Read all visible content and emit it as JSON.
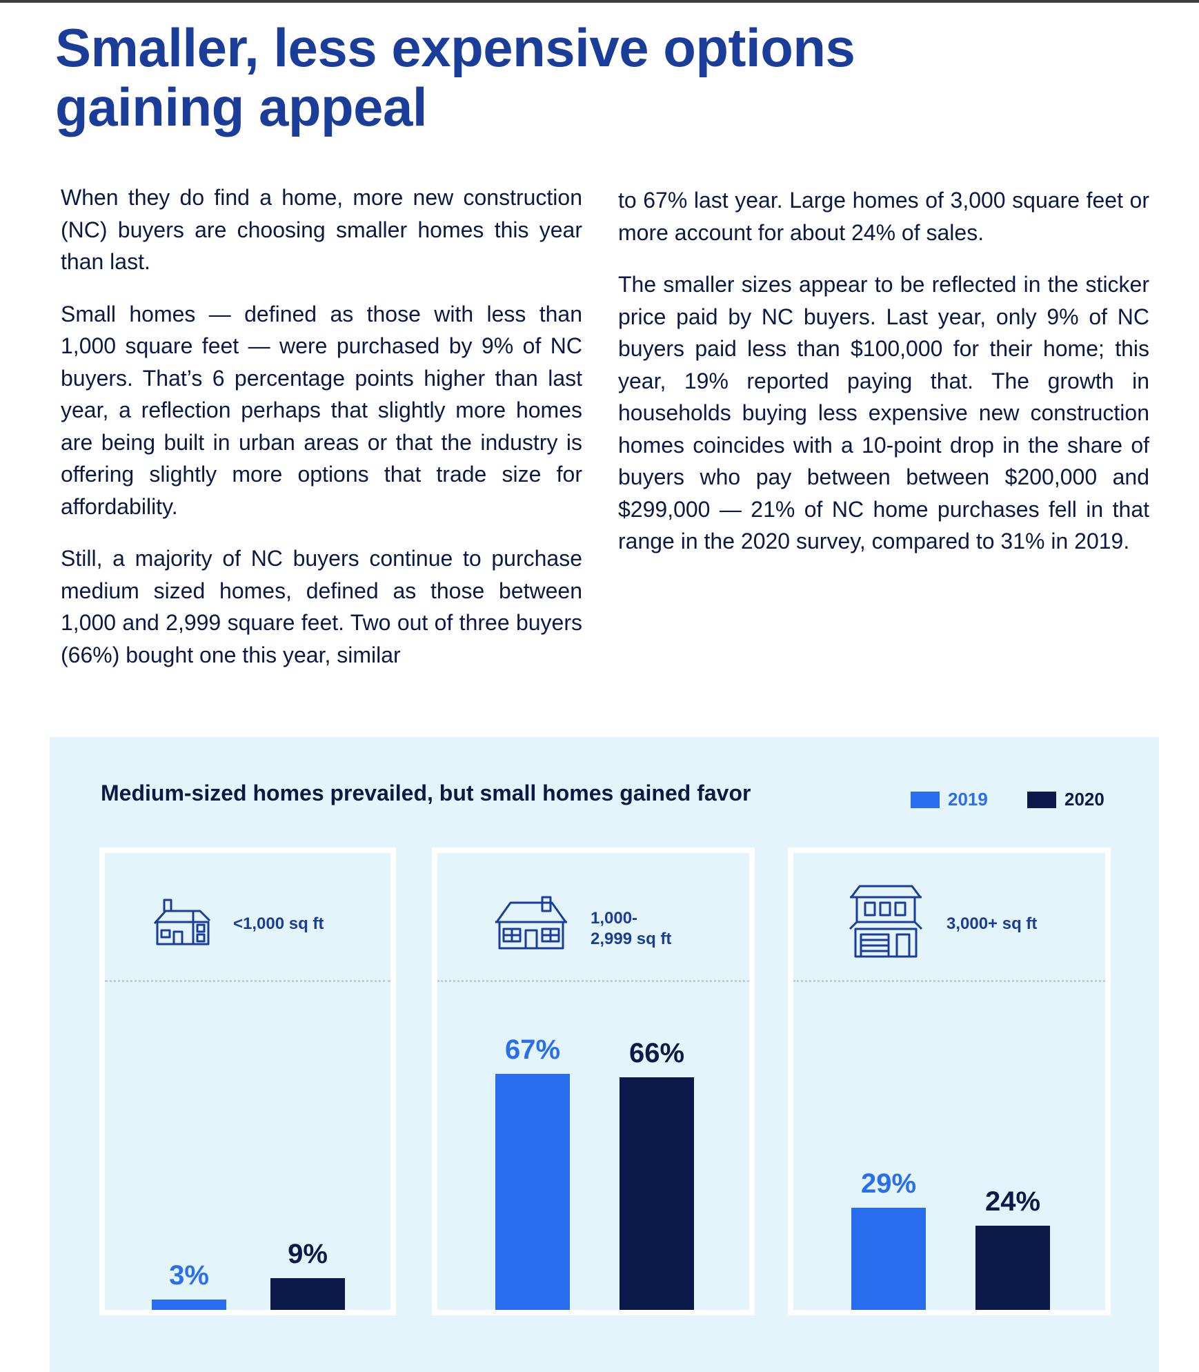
{
  "title": "Smaller, less expensive options gaining appeal",
  "body": {
    "left": [
      "When they do find a home, more new construction (NC) buyers are choosing smaller homes this year than last.",
      "Small homes — defined as those with less than 1,000 square feet — were purchased by 9% of NC buyers. That’s 6 percentage points higher than last year, a reflection perhaps that slightly more homes are being built in urban areas or that the industry is offering slightly more options that trade size for affordability.",
      "Still, a majority of NC buyers continue to purchase medium sized homes, defined as those between 1,000 and 2,999 square feet. Two out of three buyers (66%) bought one this year, similar"
    ],
    "right": [
      "to 67% last year. Large homes of 3,000 square feet or more account for about 24% of sales.",
      "The smaller sizes appear to be reflected in the sticker price paid by NC buyers. Last year, only 9% of NC buyers paid less than $100,000 for their home; this year, 19% reported paying that. The growth in households buying less expensive new construction homes coincides with a 10-point drop in the share of buyers who pay between between $200,000 and $299,000 — 21% of NC home purchases fell in that range in the 2020 survey, compared to 31% in 2019."
    ]
  },
  "colors": {
    "series_2019": "#2a6ef0",
    "series_2020": "#0b1a4a",
    "title": "#1b3d9a",
    "panel": "#e4f4fb"
  },
  "chart_data": {
    "type": "bar",
    "title": "Medium-sized homes prevailed, but small homes gained favor",
    "legend_position": "top-right",
    "categories": [
      "<1,000 sq ft",
      "1,000-\n2,999 sq ft",
      "3,000+ sq ft"
    ],
    "category_icons": [
      "small-house-icon",
      "medium-house-icon",
      "large-house-icon"
    ],
    "series": [
      {
        "name": "2019",
        "values": [
          3,
          67,
          29
        ],
        "labels": [
          "3%",
          "67%",
          "29%"
        ]
      },
      {
        "name": "2020",
        "values": [
          9,
          66,
          24
        ],
        "labels": [
          "9%",
          "66%",
          "24%"
        ]
      }
    ],
    "unit": "%",
    "ylim": [
      0,
      100
    ],
    "grid": false
  }
}
